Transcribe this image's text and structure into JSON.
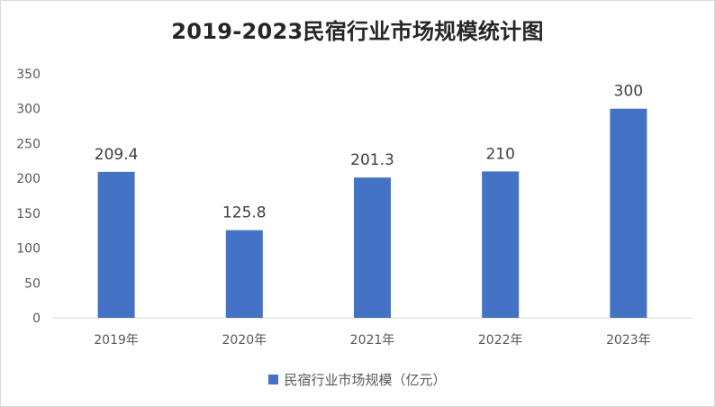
{
  "chart_data": {
    "type": "bar",
    "title": "2019-2023民宿行业市场规模统计图",
    "categories": [
      "2019年",
      "2020年",
      "2021年",
      "2022年",
      "2023年"
    ],
    "series": [
      {
        "name": "民宿行业市场规模（亿元）",
        "values": [
          209.4,
          125.8,
          201.3,
          210,
          300
        ],
        "data_labels": [
          "209.4",
          "125.8",
          "201.3",
          "210",
          "300"
        ],
        "color": "#4472c4"
      }
    ],
    "xlabel": "",
    "ylabel": "",
    "ylim": [
      0,
      350
    ],
    "yticks": [
      0,
      50,
      100,
      150,
      200,
      250,
      300,
      350
    ],
    "grid": false,
    "legend_position": "bottom"
  }
}
